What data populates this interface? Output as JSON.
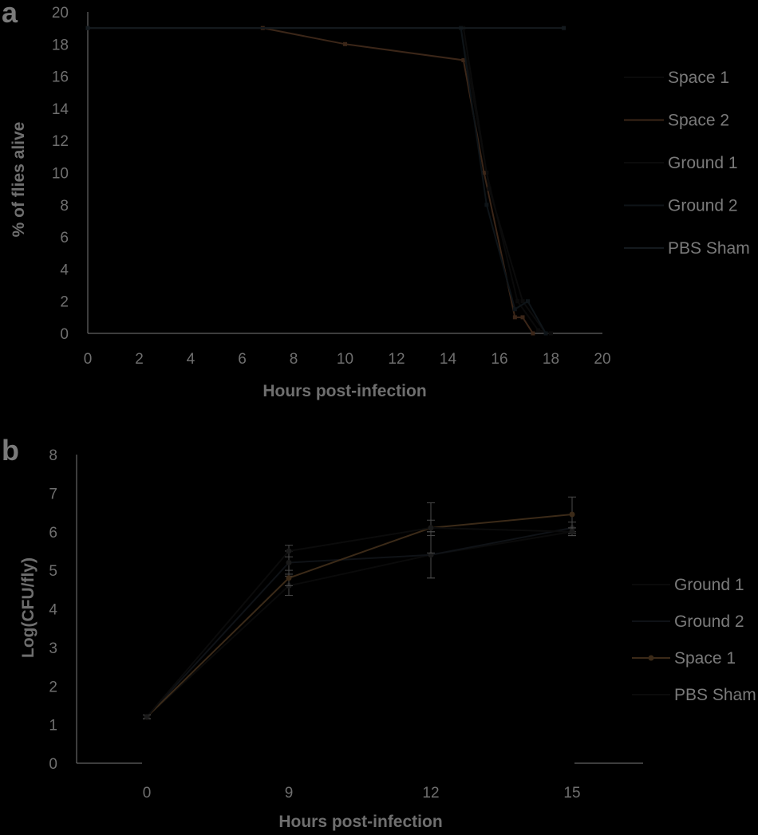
{
  "chart_data": [
    {
      "panel": "a",
      "type": "line",
      "title": "",
      "xlabel": "Hours post-infection",
      "ylabel": "% of flies alive",
      "xlim": [
        0,
        20
      ],
      "ylim": [
        0,
        20
      ],
      "xticks": [
        0,
        2,
        4,
        6,
        8,
        10,
        12,
        14,
        16,
        18,
        20
      ],
      "yticks": [
        0,
        2,
        4,
        6,
        8,
        10,
        12,
        14,
        16,
        18,
        20
      ],
      "grid": false,
      "legend_position": "right",
      "series": [
        {
          "name": "Space 1",
          "color": "#0a0a0a",
          "points": [
            [
              0,
              19
            ],
            [
              14.5,
              19
            ],
            [
              15.5,
              10
            ],
            [
              16.7,
              2
            ],
            [
              17.5,
              0.2
            ],
            [
              18,
              0
            ]
          ]
        },
        {
          "name": "Space 2",
          "color": "#3b2618",
          "points": [
            [
              0,
              19
            ],
            [
              6.8,
              19
            ],
            [
              10,
              18
            ],
            [
              14.6,
              17
            ],
            [
              15.4,
              10
            ],
            [
              16.6,
              1
            ],
            [
              16.9,
              1
            ],
            [
              17.3,
              0
            ]
          ]
        },
        {
          "name": "Ground 1",
          "color": "#0b0b0b",
          "points": [
            [
              0,
              19
            ],
            [
              14.6,
              19
            ],
            [
              15.6,
              9
            ],
            [
              16.9,
              2
            ],
            [
              17.8,
              0
            ]
          ]
        },
        {
          "name": "Ground 2",
          "color": "#0e1418",
          "points": [
            [
              0,
              19
            ],
            [
              14.5,
              19
            ],
            [
              15.5,
              8
            ],
            [
              16.6,
              1.5
            ],
            [
              17.1,
              2
            ],
            [
              17.8,
              0
            ]
          ]
        },
        {
          "name": "PBS Sham",
          "color": "#141a1e",
          "points": [
            [
              0,
              19
            ],
            [
              18.5,
              19
            ]
          ]
        }
      ]
    },
    {
      "panel": "b",
      "type": "line",
      "title": "",
      "xlabel": "Hours post-infection",
      "ylabel": "Log(CFU/fly)",
      "categories": [
        "0",
        "9",
        "12",
        "15"
      ],
      "ylim": [
        0,
        8
      ],
      "yticks": [
        0,
        1,
        2,
        3,
        4,
        5,
        6,
        7,
        8
      ],
      "grid": false,
      "legend_position": "right",
      "series": [
        {
          "name": "Ground 1",
          "color": "#0a0a0a",
          "values": [
            1.2,
            4.6,
            5.4,
            6.0
          ],
          "errors": [
            0.05,
            0.25,
            0.6,
            0.1
          ]
        },
        {
          "name": "Ground 2",
          "color": "#0f1216",
          "values": [
            1.2,
            5.2,
            5.4,
            6.1
          ],
          "errors": [
            0.05,
            0.3,
            0.6,
            0.15
          ]
        },
        {
          "name": "Space 1",
          "color": "#3b2a18",
          "values": [
            1.2,
            4.8,
            6.1,
            6.45
          ],
          "errors": [
            0.05,
            0.2,
            0.65,
            0.45
          ]
        },
        {
          "name": "PBS Sham",
          "color": "#0b0b0b",
          "values": [
            1.2,
            5.5,
            6.1,
            6.0
          ],
          "errors": [
            0.05,
            0.15,
            0.2,
            0.1
          ]
        }
      ]
    }
  ]
}
